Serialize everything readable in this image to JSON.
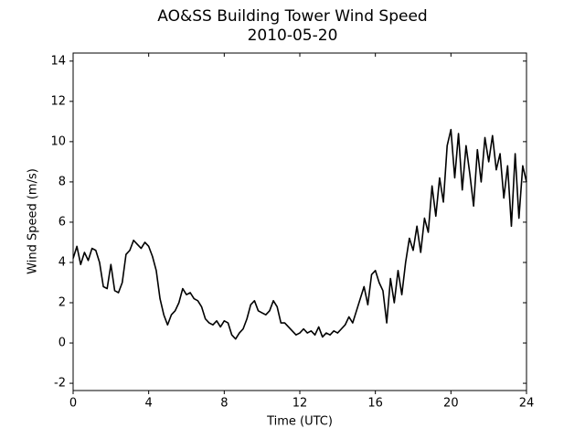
{
  "chart_data": {
    "type": "line",
    "title": "AO&SS Building Tower Wind Speed",
    "subtitle": "2010-05-20",
    "x_label": "Time (UTC)",
    "y_label": "Wind Speed (m/s)",
    "xlim": [
      0,
      24
    ],
    "xticks": [
      0,
      4,
      8,
      12,
      16,
      20,
      24
    ],
    "ylim": [
      -2.36,
      14.4
    ],
    "yticks": [
      -2,
      0,
      2,
      4,
      6,
      8,
      10,
      12,
      14
    ],
    "grid": false,
    "series": [
      {
        "name": "Wind Speed",
        "color": "#000000",
        "x": [
          0,
          0.2,
          0.4,
          0.6,
          0.8,
          1.0,
          1.2,
          1.4,
          1.6,
          1.8,
          2.0,
          2.2,
          2.4,
          2.6,
          2.8,
          3.0,
          3.2,
          3.4,
          3.6,
          3.8,
          4.0,
          4.2,
          4.4,
          4.6,
          4.8,
          5.0,
          5.2,
          5.4,
          5.6,
          5.8,
          6.0,
          6.2,
          6.4,
          6.6,
          6.8,
          7.0,
          7.2,
          7.4,
          7.6,
          7.8,
          8.0,
          8.2,
          8.4,
          8.6,
          8.8,
          9.0,
          9.2,
          9.4,
          9.6,
          9.8,
          10.0,
          10.2,
          10.4,
          10.6,
          10.8,
          11.0,
          11.2,
          11.4,
          11.6,
          11.8,
          12.0,
          12.2,
          12.4,
          12.6,
          12.8,
          13.0,
          13.2,
          13.4,
          13.6,
          13.8,
          14.0,
          14.2,
          14.4,
          14.6,
          14.8,
          15.0,
          15.2,
          15.4,
          15.6,
          15.8,
          16.0,
          16.2,
          16.4,
          16.6,
          16.8,
          17.0,
          17.2,
          17.4,
          17.6,
          17.8,
          18.0,
          18.2,
          18.4,
          18.6,
          18.8,
          19.0,
          19.2,
          19.4,
          19.6,
          19.8,
          20.0,
          20.2,
          20.4,
          20.6,
          20.8,
          21.0,
          21.2,
          21.4,
          21.6,
          21.8,
          22.0,
          22.2,
          22.4,
          22.6,
          22.8,
          23.0,
          23.2,
          23.4,
          23.6,
          23.8,
          24.0
        ],
        "values": [
          4.2,
          4.8,
          3.9,
          4.5,
          4.1,
          4.7,
          4.6,
          4.0,
          2.8,
          2.7,
          3.9,
          2.6,
          2.5,
          3.0,
          4.4,
          4.6,
          5.1,
          4.9,
          4.7,
          5.0,
          4.8,
          4.3,
          3.6,
          2.2,
          1.4,
          0.9,
          1.4,
          1.6,
          2.0,
          2.7,
          2.4,
          2.5,
          2.2,
          2.1,
          1.8,
          1.2,
          1.0,
          0.9,
          1.1,
          0.8,
          1.1,
          1.0,
          0.4,
          0.2,
          0.5,
          0.7,
          1.2,
          1.9,
          2.1,
          1.6,
          1.5,
          1.4,
          1.6,
          2.1,
          1.8,
          1.0,
          1.0,
          0.8,
          0.6,
          0.4,
          0.5,
          0.7,
          0.5,
          0.6,
          0.4,
          0.8,
          0.3,
          0.5,
          0.4,
          0.6,
          0.5,
          0.7,
          0.9,
          1.3,
          1.0,
          1.6,
          2.2,
          2.8,
          1.9,
          3.4,
          3.6,
          3.0,
          2.6,
          1.0,
          3.2,
          2.0,
          3.6,
          2.4,
          4.0,
          5.2,
          4.6,
          5.8,
          4.5,
          6.2,
          5.5,
          7.8,
          6.3,
          8.2,
          7.0,
          9.8,
          10.6,
          8.2,
          10.4,
          7.6,
          9.8,
          8.4,
          6.8,
          9.6,
          8.0,
          10.2,
          9.0,
          10.3,
          8.6,
          9.4,
          7.2,
          8.8,
          5.8,
          9.4,
          6.2,
          8.8,
          8.0
        ]
      }
    ]
  }
}
